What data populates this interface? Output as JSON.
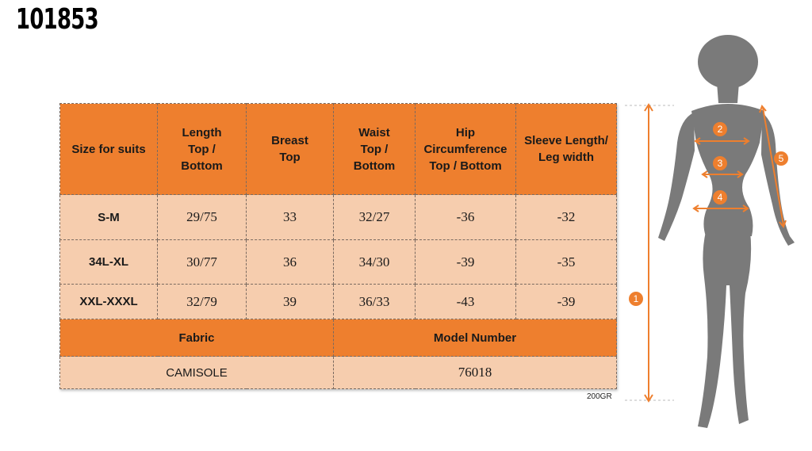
{
  "product_code": "101853",
  "table": {
    "headers": [
      "Size for suits",
      "Length Top / Bottom",
      "Breast Top",
      "Waist Top / Bottom",
      "Hip Circumference Top / Bottom",
      "Sleeve Length/ Leg width"
    ],
    "rows": [
      [
        "S-M",
        "29/75",
        "33",
        "32/27",
        "-36",
        "-32"
      ],
      [
        "34L-XL",
        "30/77",
        "36",
        "34/30",
        "-39",
        "-35"
      ],
      [
        "XXL-XXXL",
        "32/79",
        "39",
        "36/33",
        "-43",
        "-39"
      ]
    ],
    "fabric_label": "Fabric",
    "model_label": "Model Number",
    "fabric_value": "CAMISOLE",
    "model_value": "76018"
  },
  "weight_note": "200GR",
  "figure": {
    "markers": [
      "1",
      "2",
      "3",
      "4",
      "5"
    ],
    "colors": {
      "accent": "#ee7f2e",
      "body": "#7a7a7a"
    }
  }
}
